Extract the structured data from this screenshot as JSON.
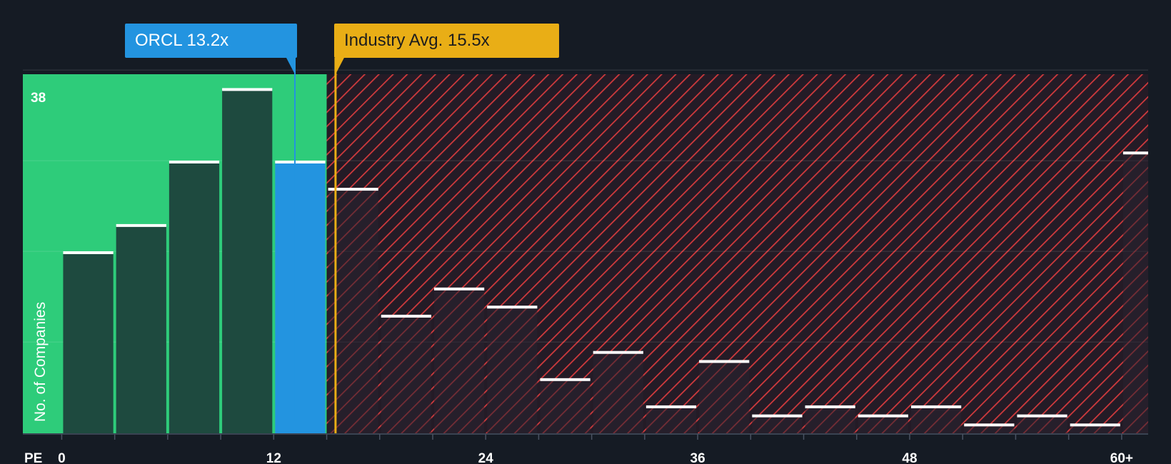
{
  "callouts": {
    "company": "ORCL 13.2x",
    "industry": "Industry Avg. 15.5x"
  },
  "colors": {
    "background": "#151b24",
    "fair_zone": "#2ecc7a",
    "bar_fill": "#1e4a3f",
    "company_bar": "#2394e0",
    "industry": "#e9ae16",
    "overvalued_stripe": "#d23a3d"
  },
  "chart_data": {
    "type": "bar",
    "title": "",
    "xlabel": "PE",
    "ylabel": "No. of Companies",
    "y_tick_label": "38",
    "ylim": [
      0,
      40
    ],
    "x_tick_labels": [
      "0",
      "12",
      "24",
      "36",
      "48",
      "60+"
    ],
    "x_tick_values": [
      0,
      12,
      24,
      36,
      48,
      60
    ],
    "xlim": [
      -2.2,
      61.5
    ],
    "bin_width": 3,
    "bins": [
      {
        "start": 0,
        "end": 3,
        "value": 20
      },
      {
        "start": 3,
        "end": 6,
        "value": 23
      },
      {
        "start": 6,
        "end": 9,
        "value": 30
      },
      {
        "start": 9,
        "end": 12,
        "value": 38
      },
      {
        "start": 12,
        "end": 15,
        "value": 30
      },
      {
        "start": 15,
        "end": 18,
        "value": 27
      },
      {
        "start": 18,
        "end": 21,
        "value": 13
      },
      {
        "start": 21,
        "end": 24,
        "value": 16
      },
      {
        "start": 24,
        "end": 27,
        "value": 14
      },
      {
        "start": 27,
        "end": 30,
        "value": 6
      },
      {
        "start": 30,
        "end": 33,
        "value": 9
      },
      {
        "start": 33,
        "end": 36,
        "value": 3
      },
      {
        "start": 36,
        "end": 39,
        "value": 8
      },
      {
        "start": 39,
        "end": 42,
        "value": 2
      },
      {
        "start": 42,
        "end": 45,
        "value": 3
      },
      {
        "start": 45,
        "end": 48,
        "value": 2
      },
      {
        "start": 48,
        "end": 51,
        "value": 3
      },
      {
        "start": 51,
        "end": 54,
        "value": 1
      },
      {
        "start": 54,
        "end": 57,
        "value": 2
      },
      {
        "start": 57,
        "end": 60,
        "value": 1
      },
      {
        "start": 60,
        "end": 61.5,
        "value": 31
      }
    ],
    "company_pe": 13.2,
    "industry_avg_pe": 15.5,
    "fair_value_upper_pe": 15
  }
}
